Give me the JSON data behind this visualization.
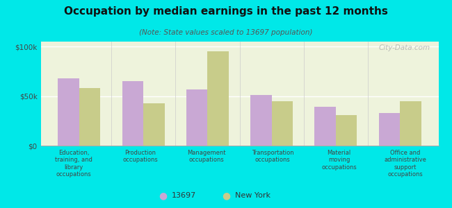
{
  "title": "Occupation by median earnings in the past 12 months",
  "subtitle": "(Note: State values scaled to 13697 population)",
  "categories": [
    "Education,\ntraining, and\nlibrary\noccupations",
    "Production\noccupations",
    "Management\noccupations",
    "Transportation\noccupations",
    "Material\nmoving\noccupations",
    "Office and\nadministrative\nsupport\noccupations"
  ],
  "values_13697": [
    68000,
    65000,
    57000,
    51000,
    39000,
    33000
  ],
  "values_ny": [
    58000,
    43000,
    95000,
    45000,
    31000,
    45000
  ],
  "color_13697": "#c9a8d4",
  "color_ny": "#c8cc8a",
  "background_outer": "#00e8e8",
  "background_inner": "#eef3dc",
  "ylim": [
    0,
    105000
  ],
  "yticks": [
    0,
    50000,
    100000
  ],
  "ytick_labels": [
    "$0",
    "$50k",
    "$100k"
  ],
  "legend_label_1": "13697",
  "legend_label_2": "New York",
  "watermark": "City-Data.com"
}
